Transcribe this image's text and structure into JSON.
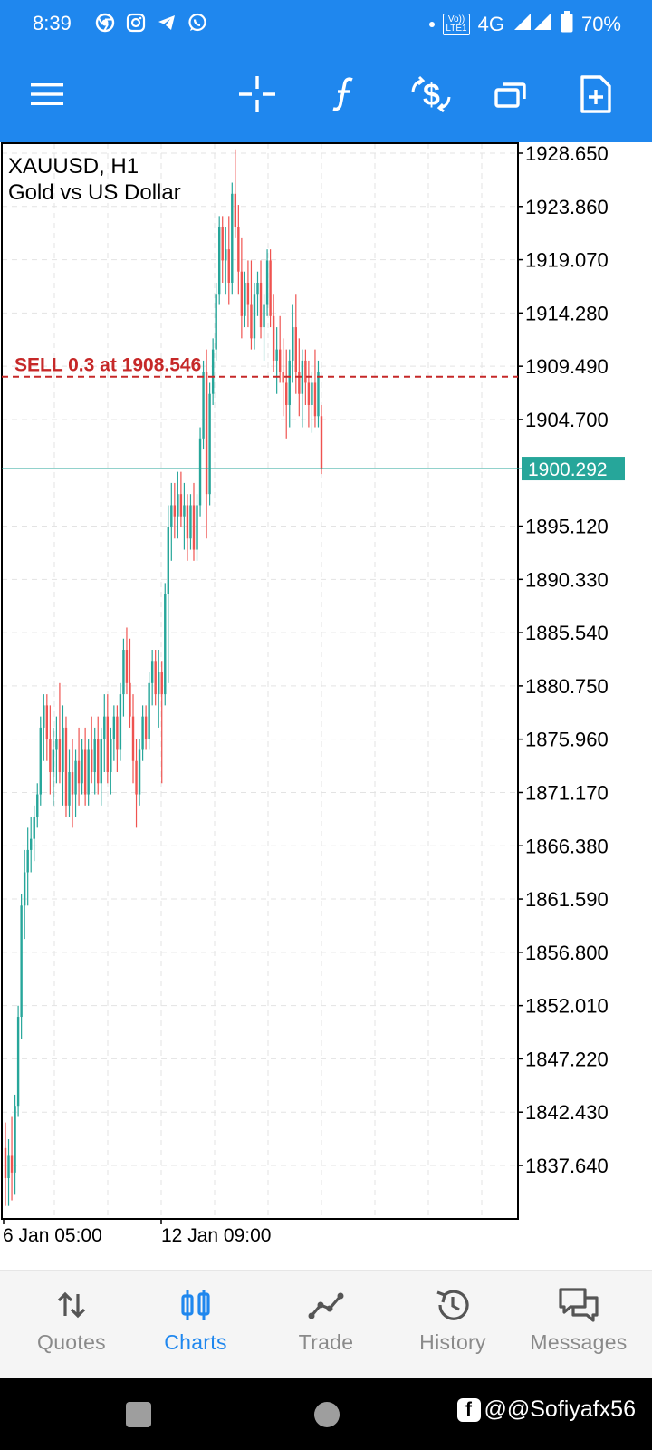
{
  "status_bar": {
    "time": "8:39",
    "network": "4G",
    "battery": "70%",
    "volte_line1": "Vo))",
    "volte_line2": "LTE1",
    "icons": [
      "chrome-icon",
      "instagram-icon",
      "telegram-icon",
      "whatsapp-icon",
      "dot-icon",
      "volte-icon",
      "signal-icon",
      "battery-icon"
    ]
  },
  "toolbar": {
    "icons": [
      "menu-icon",
      "crosshair-icon",
      "function-icon",
      "one-click-trade-icon",
      "window-icon",
      "new-order-icon"
    ]
  },
  "chart": {
    "symbol_label": "XAUUSD, H1",
    "description": "Gold vs US Dollar",
    "order_line_label": "SELL 0.3 at 1908.546",
    "current_price_label": "1900.292",
    "colors": {
      "bull": "#26a69a",
      "bear": "#ef5350",
      "order_line": "#c62828",
      "price_badge": "#26a69a",
      "grid": "#e3e3e3"
    }
  },
  "chart_data": {
    "type": "candlestick",
    "symbol": "XAUUSD",
    "timeframe": "H1",
    "price_ticks": [
      "1928.650",
      "1923.860",
      "1919.070",
      "1914.280",
      "1909.490",
      "1904.700",
      "1895.120",
      "1890.330",
      "1885.540",
      "1880.750",
      "1875.960",
      "1871.170",
      "1866.380",
      "1861.590",
      "1856.800",
      "1852.010",
      "1847.220",
      "1842.430",
      "1837.640"
    ],
    "time_labels": [
      "6 Jan 05:00",
      "12 Jan 09:00"
    ],
    "order_line_price": 1908.546,
    "current_price": 1900.292,
    "y_range": [
      1833.6,
      1929.2
    ],
    "grid": true,
    "candles": [
      {
        "o": 1839.2,
        "h": 1841.5,
        "l": 1834.0,
        "c": 1836.5
      },
      {
        "o": 1836.5,
        "h": 1840.0,
        "l": 1834.0,
        "c": 1838.5
      },
      {
        "o": 1838.5,
        "h": 1842.0,
        "l": 1834.5,
        "c": 1837.0
      },
      {
        "o": 1837.0,
        "h": 1844.0,
        "l": 1835.0,
        "c": 1843.0
      },
      {
        "o": 1843.0,
        "h": 1852.0,
        "l": 1842.0,
        "c": 1851.0
      },
      {
        "o": 1851.0,
        "h": 1862.0,
        "l": 1849.0,
        "c": 1861.0
      },
      {
        "o": 1861.0,
        "h": 1866.0,
        "l": 1858.0,
        "c": 1864.0
      },
      {
        "o": 1864.0,
        "h": 1868.0,
        "l": 1861.0,
        "c": 1866.0
      },
      {
        "o": 1866.0,
        "h": 1869.0,
        "l": 1864.0,
        "c": 1867.0
      },
      {
        "o": 1867.0,
        "h": 1870.0,
        "l": 1865.0,
        "c": 1869.0
      },
      {
        "o": 1869.0,
        "h": 1872.0,
        "l": 1868.0,
        "c": 1871.0
      },
      {
        "o": 1871.0,
        "h": 1878.0,
        "l": 1870.0,
        "c": 1877.0
      },
      {
        "o": 1877.0,
        "h": 1880.0,
        "l": 1874.0,
        "c": 1879.0
      },
      {
        "o": 1879.0,
        "h": 1880.0,
        "l": 1874.0,
        "c": 1876.0
      },
      {
        "o": 1876.0,
        "h": 1879.0,
        "l": 1871.0,
        "c": 1873.0
      },
      {
        "o": 1873.0,
        "h": 1877.0,
        "l": 1870.0,
        "c": 1875.0
      },
      {
        "o": 1875.0,
        "h": 1878.0,
        "l": 1872.0,
        "c": 1876.0
      },
      {
        "o": 1876.0,
        "h": 1881.0,
        "l": 1872.0,
        "c": 1873.0
      },
      {
        "o": 1873.0,
        "h": 1879.0,
        "l": 1870.0,
        "c": 1877.0
      },
      {
        "o": 1877.0,
        "h": 1878.0,
        "l": 1869.0,
        "c": 1870.0
      },
      {
        "o": 1870.0,
        "h": 1875.0,
        "l": 1869.0,
        "c": 1873.0
      },
      {
        "o": 1873.0,
        "h": 1876.0,
        "l": 1868.0,
        "c": 1871.0
      },
      {
        "o": 1871.0,
        "h": 1875.0,
        "l": 1869.0,
        "c": 1874.0
      },
      {
        "o": 1874.0,
        "h": 1877.0,
        "l": 1870.0,
        "c": 1872.0
      },
      {
        "o": 1872.0,
        "h": 1876.0,
        "l": 1871.0,
        "c": 1875.0
      },
      {
        "o": 1875.0,
        "h": 1877.0,
        "l": 1870.0,
        "c": 1871.0
      },
      {
        "o": 1871.0,
        "h": 1876.0,
        "l": 1870.0,
        "c": 1875.0
      },
      {
        "o": 1875.0,
        "h": 1878.0,
        "l": 1872.0,
        "c": 1873.0
      },
      {
        "o": 1873.0,
        "h": 1877.0,
        "l": 1871.0,
        "c": 1876.0
      },
      {
        "o": 1876.0,
        "h": 1878.0,
        "l": 1871.0,
        "c": 1872.0
      },
      {
        "o": 1872.0,
        "h": 1877.0,
        "l": 1870.0,
        "c": 1876.0
      },
      {
        "o": 1876.0,
        "h": 1880.0,
        "l": 1873.0,
        "c": 1878.0
      },
      {
        "o": 1878.0,
        "h": 1880.0,
        "l": 1872.0,
        "c": 1873.0
      },
      {
        "o": 1873.0,
        "h": 1877.0,
        "l": 1871.0,
        "c": 1876.0
      },
      {
        "o": 1876.0,
        "h": 1879.0,
        "l": 1874.0,
        "c": 1878.0
      },
      {
        "o": 1878.0,
        "h": 1879.0,
        "l": 1873.0,
        "c": 1875.0
      },
      {
        "o": 1875.0,
        "h": 1881.0,
        "l": 1874.0,
        "c": 1880.0
      },
      {
        "o": 1880.0,
        "h": 1885.0,
        "l": 1878.0,
        "c": 1884.0
      },
      {
        "o": 1884.0,
        "h": 1886.0,
        "l": 1880.0,
        "c": 1881.0
      },
      {
        "o": 1881.0,
        "h": 1885.0,
        "l": 1877.0,
        "c": 1878.0
      },
      {
        "o": 1878.0,
        "h": 1880.0,
        "l": 1872.0,
        "c": 1874.0
      },
      {
        "o": 1874.0,
        "h": 1876.0,
        "l": 1868.0,
        "c": 1871.0
      },
      {
        "o": 1871.0,
        "h": 1876.0,
        "l": 1870.0,
        "c": 1875.0
      },
      {
        "o": 1875.0,
        "h": 1879.0,
        "l": 1874.0,
        "c": 1878.0
      },
      {
        "o": 1878.0,
        "h": 1879.0,
        "l": 1875.0,
        "c": 1876.0
      },
      {
        "o": 1876.0,
        "h": 1882.0,
        "l": 1875.0,
        "c": 1881.0
      },
      {
        "o": 1881.0,
        "h": 1884.0,
        "l": 1879.0,
        "c": 1883.0
      },
      {
        "o": 1883.0,
        "h": 1884.0,
        "l": 1879.0,
        "c": 1880.0
      },
      {
        "o": 1880.0,
        "h": 1884.0,
        "l": 1877.0,
        "c": 1882.0
      },
      {
        "o": 1882.0,
        "h": 1883.0,
        "l": 1872.0,
        "c": 1880.0
      },
      {
        "o": 1880.0,
        "h": 1890.0,
        "l": 1879.0,
        "c": 1889.0
      },
      {
        "o": 1889.0,
        "h": 1897.0,
        "l": 1881.0,
        "c": 1895.0
      },
      {
        "o": 1895.0,
        "h": 1899.0,
        "l": 1892.0,
        "c": 1897.0
      },
      {
        "o": 1897.0,
        "h": 1899.0,
        "l": 1894.0,
        "c": 1896.0
      },
      {
        "o": 1896.0,
        "h": 1900.0,
        "l": 1894.0,
        "c": 1898.0
      },
      {
        "o": 1898.0,
        "h": 1900.0,
        "l": 1895.0,
        "c": 1896.0
      },
      {
        "o": 1896.0,
        "h": 1899.0,
        "l": 1893.0,
        "c": 1897.0
      },
      {
        "o": 1897.0,
        "h": 1898.0,
        "l": 1892.0,
        "c": 1894.0
      },
      {
        "o": 1894.0,
        "h": 1898.0,
        "l": 1893.0,
        "c": 1897.0
      },
      {
        "o": 1897.0,
        "h": 1899.0,
        "l": 1892.0,
        "c": 1893.0
      },
      {
        "o": 1893.0,
        "h": 1898.0,
        "l": 1892.0,
        "c": 1897.0
      },
      {
        "o": 1897.0,
        "h": 1904.0,
        "l": 1896.0,
        "c": 1903.0
      },
      {
        "o": 1903.0,
        "h": 1910.0,
        "l": 1902.0,
        "c": 1909.0
      },
      {
        "o": 1909.0,
        "h": 1911.0,
        "l": 1894.0,
        "c": 1898.0
      },
      {
        "o": 1898.0,
        "h": 1908.0,
        "l": 1897.0,
        "c": 1907.0
      },
      {
        "o": 1907.0,
        "h": 1912.0,
        "l": 1906.0,
        "c": 1911.0
      },
      {
        "o": 1911.0,
        "h": 1917.0,
        "l": 1910.0,
        "c": 1916.0
      },
      {
        "o": 1916.0,
        "h": 1923.0,
        "l": 1915.0,
        "c": 1922.0
      },
      {
        "o": 1922.0,
        "h": 1923.0,
        "l": 1917.0,
        "c": 1919.0
      },
      {
        "o": 1919.0,
        "h": 1922.0,
        "l": 1916.0,
        "c": 1920.0
      },
      {
        "o": 1920.0,
        "h": 1923.0,
        "l": 1915.0,
        "c": 1917.0
      },
      {
        "o": 1917.0,
        "h": 1926.0,
        "l": 1916.0,
        "c": 1925.0
      },
      {
        "o": 1925.0,
        "h": 1929.0,
        "l": 1921.0,
        "c": 1922.0
      },
      {
        "o": 1922.0,
        "h": 1924.0,
        "l": 1916.0,
        "c": 1918.0
      },
      {
        "o": 1918.0,
        "h": 1921.0,
        "l": 1912.0,
        "c": 1914.0
      },
      {
        "o": 1914.0,
        "h": 1918.0,
        "l": 1913.0,
        "c": 1917.0
      },
      {
        "o": 1917.0,
        "h": 1919.0,
        "l": 1913.0,
        "c": 1915.0
      },
      {
        "o": 1915.0,
        "h": 1919.0,
        "l": 1911.0,
        "c": 1912.0
      },
      {
        "o": 1912.0,
        "h": 1917.0,
        "l": 1911.0,
        "c": 1916.0
      },
      {
        "o": 1916.0,
        "h": 1918.0,
        "l": 1914.0,
        "c": 1917.0
      },
      {
        "o": 1917.0,
        "h": 1919.0,
        "l": 1912.0,
        "c": 1913.0
      },
      {
        "o": 1913.0,
        "h": 1916.0,
        "l": 1910.0,
        "c": 1915.0
      },
      {
        "o": 1915.0,
        "h": 1920.0,
        "l": 1914.0,
        "c": 1919.0
      },
      {
        "o": 1919.0,
        "h": 1920.0,
        "l": 1913.0,
        "c": 1914.0
      },
      {
        "o": 1914.0,
        "h": 1916.0,
        "l": 1909.0,
        "c": 1910.0
      },
      {
        "o": 1910.0,
        "h": 1913.0,
        "l": 1907.0,
        "c": 1911.0
      },
      {
        "o": 1911.0,
        "h": 1914.0,
        "l": 1908.0,
        "c": 1909.0
      },
      {
        "o": 1909.0,
        "h": 1912.0,
        "l": 1905.0,
        "c": 1908.0
      },
      {
        "o": 1908.0,
        "h": 1911.0,
        "l": 1903.0,
        "c": 1906.0
      },
      {
        "o": 1906.0,
        "h": 1911.0,
        "l": 1904.0,
        "c": 1910.0
      },
      {
        "o": 1910.0,
        "h": 1915.0,
        "l": 1908.0,
        "c": 1913.0
      },
      {
        "o": 1913.0,
        "h": 1916.0,
        "l": 1907.0,
        "c": 1909.0
      },
      {
        "o": 1909.0,
        "h": 1912.0,
        "l": 1905.0,
        "c": 1907.0
      },
      {
        "o": 1907.0,
        "h": 1911.0,
        "l": 1904.0,
        "c": 1910.0
      },
      {
        "o": 1910.0,
        "h": 1911.0,
        "l": 1906.0,
        "c": 1908.0
      },
      {
        "o": 1908.0,
        "h": 1910.0,
        "l": 1904.0,
        "c": 1906.0
      },
      {
        "o": 1906.0,
        "h": 1909.0,
        "l": 1903.5,
        "c": 1908.0
      },
      {
        "o": 1908.0,
        "h": 1911.0,
        "l": 1904.0,
        "c": 1905.0
      },
      {
        "o": 1905.0,
        "h": 1910.0,
        "l": 1904.0,
        "c": 1909.0
      },
      {
        "o": 1905.0,
        "h": 1906.0,
        "l": 1899.8,
        "c": 1900.3
      }
    ]
  },
  "tabs": [
    {
      "label": "Quotes",
      "icon": "quotes-icon",
      "active": false
    },
    {
      "label": "Charts",
      "icon": "charts-icon",
      "active": true
    },
    {
      "label": "Trade",
      "icon": "trade-icon",
      "active": false
    },
    {
      "label": "History",
      "icon": "history-icon",
      "active": false
    },
    {
      "label": "Messages",
      "icon": "messages-icon",
      "active": false
    }
  ],
  "watermark": {
    "fb_letter": "f",
    "handle": "@@Sofiyafx56"
  }
}
